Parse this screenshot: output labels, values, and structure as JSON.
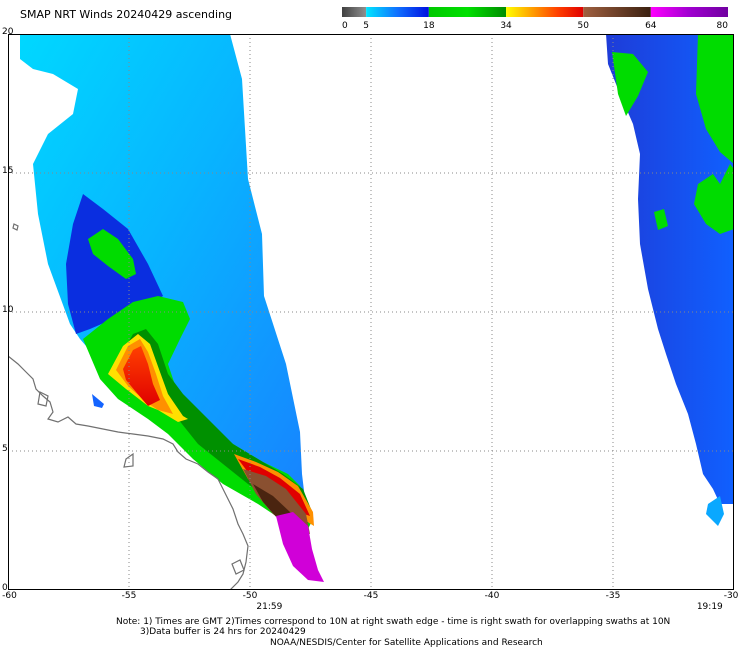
{
  "title": "SMAP NRT Winds 20240429 ascending",
  "colorbar": {
    "labels": [
      {
        "text": "0",
        "value": 0
      },
      {
        "text": "5",
        "value": 5
      },
      {
        "text": "18",
        "value": 18
      },
      {
        "text": "34",
        "value": 34
      },
      {
        "text": "50",
        "value": 50
      },
      {
        "text": "64",
        "value": 64
      },
      {
        "text": "80",
        "value": 80
      }
    ],
    "segments": [
      {
        "from": 0,
        "to": 5,
        "colors": [
          "#404040",
          "#909090"
        ]
      },
      {
        "from": 5,
        "to": 18,
        "colors": [
          "#00e6ff",
          "#1070ff",
          "#0010e0"
        ]
      },
      {
        "from": 18,
        "to": 34,
        "colors": [
          "#00c800",
          "#00e000",
          "#008c00"
        ]
      },
      {
        "from": 34,
        "to": 50,
        "colors": [
          "#ffff00",
          "#ffa000",
          "#ff4000",
          "#e00000"
        ]
      },
      {
        "from": 50,
        "to": 64,
        "colors": [
          "#a06040",
          "#3a2010"
        ]
      },
      {
        "from": 64,
        "to": 80,
        "colors": [
          "#ff00ff",
          "#a000d0",
          "#7000a0"
        ]
      }
    ]
  },
  "axes": {
    "lon_range": [
      -60,
      -30
    ],
    "lat_range": [
      0,
      20
    ],
    "x_ticks": [
      "-60",
      "-55",
      "-50",
      "-45",
      "-40",
      "-35",
      "-30"
    ],
    "y_ticks": [
      "0",
      "5",
      "10",
      "15",
      "20"
    ]
  },
  "swath_times": [
    {
      "text": "21:59",
      "lon": -49.2
    },
    {
      "text": "19:19",
      "lon": -31.0
    }
  ],
  "notes": {
    "line1": "Note: 1) Times are GMT 2)Times correspond to 10N at right swath edge - time is right swath for overlapping swaths at 10N",
    "line2": "3)Data buffer is 24 hrs for 20240429",
    "line3": "NOAA/NESDIS/Center for Satellite Applications and Research"
  },
  "colors": {
    "land_outline": "#707070",
    "grid": "#888888",
    "frame": "#000000"
  }
}
